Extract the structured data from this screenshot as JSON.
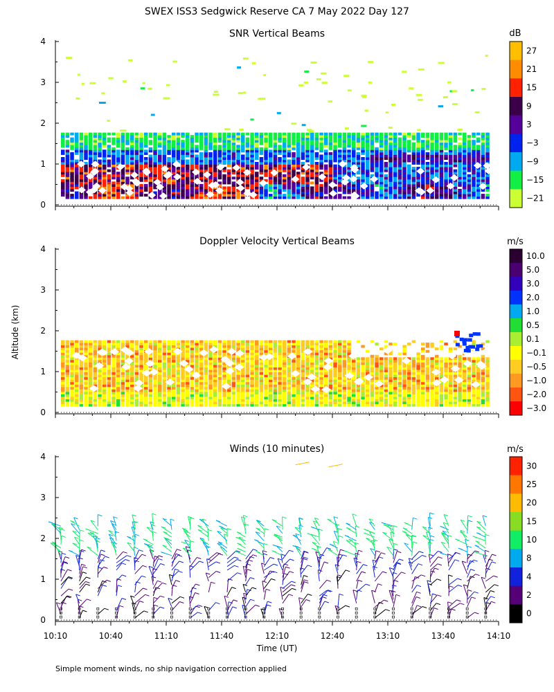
{
  "figure": {
    "title": "SWEX ISS3 Sedgwick Reserve CA   7 May 2022 Day 127",
    "ylabel": "Altitude (km)",
    "xlabel": "Time (UT)",
    "footnote": "Simple moment winds, no ship navigation correction applied"
  },
  "x_ticks": [
    "10:10",
    "10:40",
    "11:10",
    "11:40",
    "12:10",
    "12:40",
    "13:10",
    "13:40",
    "14:10"
  ],
  "y_ticks": [
    "0",
    "1",
    "2",
    "3",
    "4"
  ],
  "chart_data": [
    {
      "type": "heatmap",
      "title": "SNR Vertical Beams",
      "colorbar_unit": "dB",
      "colorbar_labels": [
        "27",
        "21",
        "15",
        "9",
        "3",
        "−3",
        "−9",
        "−15",
        "−21"
      ],
      "colorbar_colors": [
        "#ffbf00",
        "#ff8c00",
        "#ff2200",
        "#3a0048",
        "#55009a",
        "#0022ee",
        "#00aaf0",
        "#11ee44",
        "#ccff33"
      ],
      "x_range": [
        "10:10",
        "14:10"
      ],
      "ylim": [
        0,
        4
      ],
      "layers": [
        {
          "alt_km": [
            0.15,
            0.45
          ],
          "snr_db": 9
        },
        {
          "alt_km": [
            0.45,
            0.9
          ],
          "snr_db": 12
        },
        {
          "alt_km": [
            0.9,
            1.3
          ],
          "snr_db": -6
        },
        {
          "alt_km": [
            1.3,
            1.75
          ],
          "snr_db": -15
        },
        {
          "alt_km": [
            1.75,
            3.9
          ],
          "snr_db": -21
        }
      ]
    },
    {
      "type": "heatmap",
      "title": "Doppler Velocity Vertical Beams",
      "colorbar_unit": "m/s",
      "colorbar_labels": [
        "10.0",
        "5.0",
        "3.0",
        "2.0",
        "1.0",
        "0.5",
        "0.1",
        "−0.1",
        "−0.5",
        "−1.0",
        "−2.0",
        "−3.0"
      ],
      "colorbar_colors": [
        "#2a0030",
        "#4a0070",
        "#3300bb",
        "#0033ff",
        "#00aaf0",
        "#22dd33",
        "#aaee33",
        "#ffff00",
        "#ffcc22",
        "#ff9922",
        "#ff5511",
        "#ff0000"
      ],
      "x_range": [
        "10:10",
        "14:10"
      ],
      "ylim": [
        0,
        4
      ],
      "layers": [
        {
          "alt_km": [
            0.15,
            0.5
          ],
          "velocity_ms": 0.0
        },
        {
          "alt_km": [
            0.5,
            1.7
          ],
          "velocity_ms": -0.5
        }
      ]
    },
    {
      "type": "scatter",
      "title": "Winds (10 minutes)",
      "colorbar_unit": "m/s",
      "colorbar_labels": [
        "30",
        "25",
        "20",
        "15",
        "10",
        "8",
        "4",
        "2",
        "0"
      ],
      "colorbar_colors": [
        "#ff2200",
        "#ff7700",
        "#ffbb00",
        "#88dd22",
        "#11ee66",
        "#00aaee",
        "#1122dd",
        "#550077",
        "#000000"
      ],
      "x_range": [
        "10:10",
        "14:10"
      ],
      "ylim": [
        0,
        4
      ],
      "profile_times": [
        "10:13",
        "10:23",
        "10:33",
        "10:43",
        "10:53",
        "11:03",
        "11:13",
        "11:23",
        "11:33",
        "11:43",
        "11:53",
        "12:03",
        "12:13",
        "12:23",
        "12:33",
        "12:43",
        "12:53",
        "13:03",
        "13:13",
        "13:23",
        "13:33",
        "13:43",
        "13:53",
        "14:03"
      ]
    }
  ]
}
